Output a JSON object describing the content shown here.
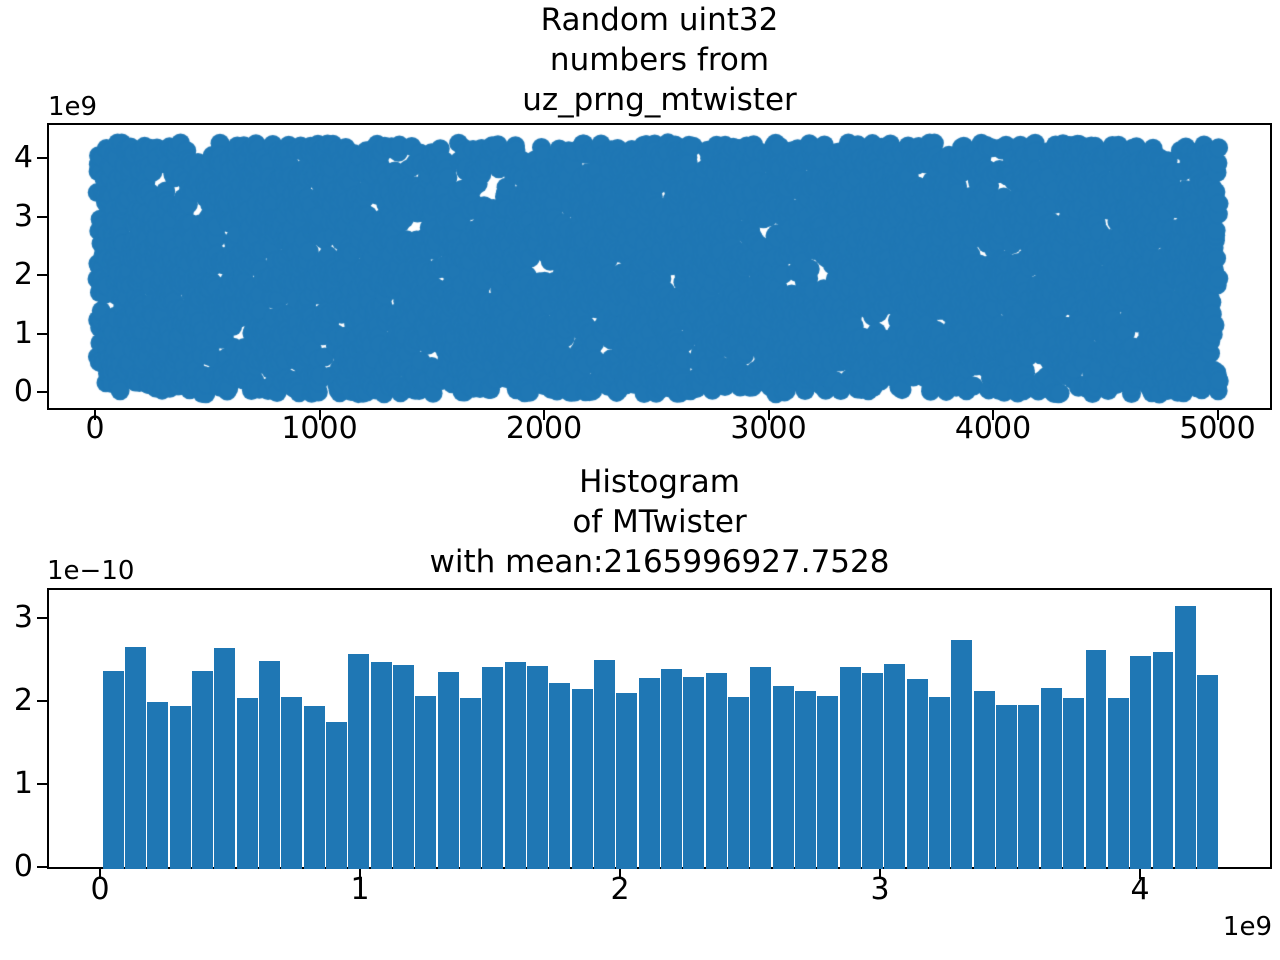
{
  "figure": {
    "background": "#ffffff",
    "accent_color": "#1f77b4"
  },
  "chart_data": [
    {
      "type": "scatter",
      "title_lines": [
        "Random uint32",
        "numbers from",
        "uz_prng_mtwister"
      ],
      "x_ticks": [
        0,
        1000,
        2000,
        3000,
        4000,
        5000
      ],
      "y_ticks": [
        0,
        1,
        2,
        3,
        4
      ],
      "y_offset_label": "1e9",
      "xlim": [
        -250,
        5280
      ],
      "ylim_e9": [
        -0.21,
        4.51
      ],
      "n_points": 5000,
      "x_data_description": "sample index 0 to 5000",
      "y_data_description": "uniform random uint32 values in [0, 4294967295]",
      "y_data_max_e9": 4.295,
      "marker_color": "#1f77b4",
      "marker_diameter_px": 19
    },
    {
      "type": "bar",
      "subtype": "histogram-density",
      "title_lines": [
        "Histogram",
        "of MTwister",
        "with mean:2165996927.7528"
      ],
      "mean_value_shown": "2165996927.7528",
      "bins": 50,
      "range_e9": [
        0,
        4.295
      ],
      "x_ticks_e9": [
        0,
        1,
        2,
        3,
        4
      ],
      "x_offset_label": "1e9",
      "y_ticks_e10": [
        0,
        1,
        2,
        3
      ],
      "y_offset_label": "1e−10",
      "ylim_e10": [
        0,
        3.35
      ],
      "bar_color": "#1f77b4",
      "densities_e10": [
        2.39,
        2.68,
        2.01,
        1.96,
        2.39,
        2.66,
        2.06,
        2.51,
        2.07,
        1.96,
        1.77,
        2.59,
        2.49,
        2.46,
        2.09,
        2.38,
        2.06,
        2.43,
        2.49,
        2.45,
        2.24,
        2.17,
        2.52,
        2.12,
        2.3,
        2.41,
        2.31,
        2.36,
        2.07,
        2.43,
        2.21,
        2.14,
        2.09,
        2.43,
        2.36,
        2.47,
        2.29,
        2.07,
        2.76,
        2.15,
        1.98,
        1.98,
        2.18,
        2.06,
        2.64,
        2.06,
        2.57,
        2.61,
        3.17,
        2.34
      ]
    }
  ]
}
